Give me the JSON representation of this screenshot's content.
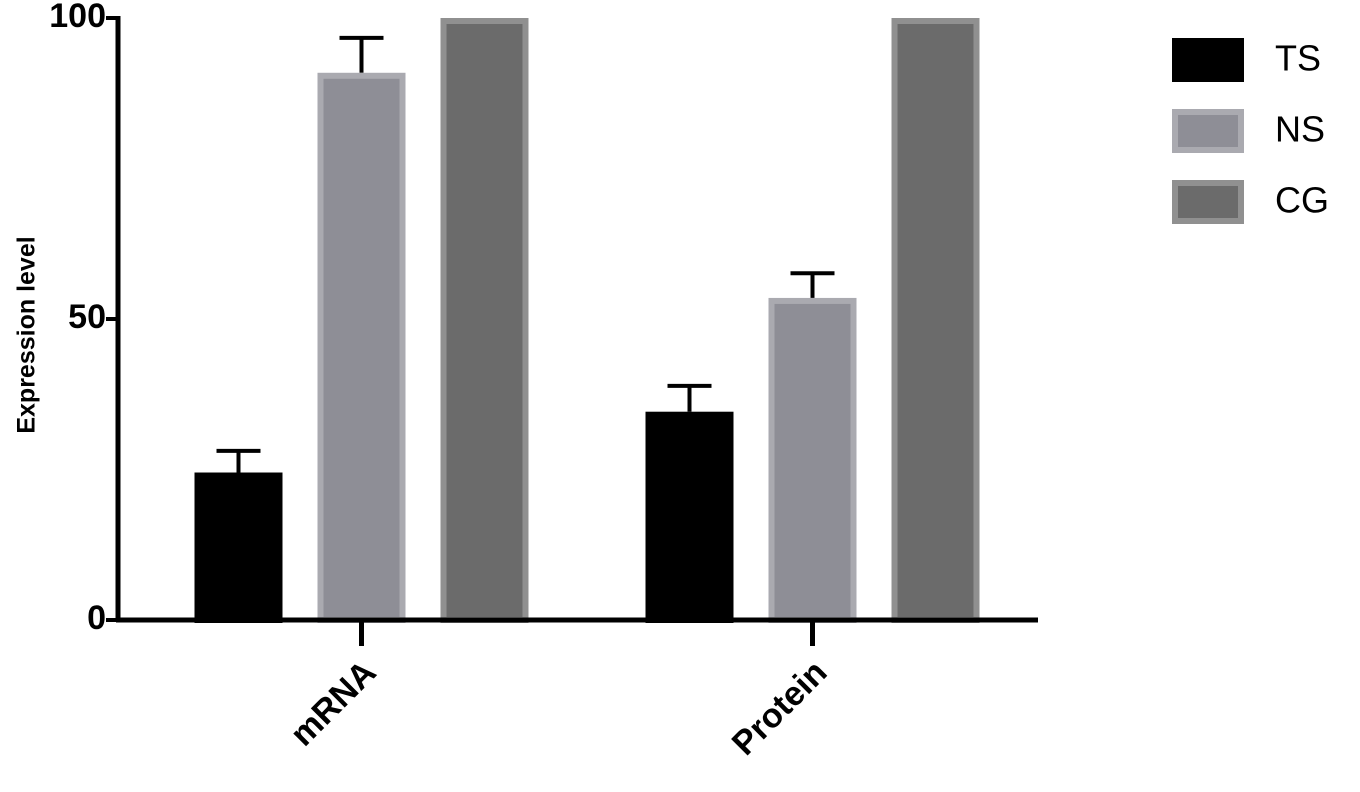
{
  "chart_data": {
    "type": "bar",
    "y_label": "Expression level",
    "categories": [
      "mRNA",
      "Protein"
    ],
    "series": [
      {
        "name": "TS",
        "color": "#000000",
        "values": [
          24.5,
          34.6
        ],
        "errors": [
          3.6,
          4.3
        ]
      },
      {
        "name": "NS",
        "color": "#8e8e96",
        "values": [
          90.9,
          53.5
        ],
        "errors": [
          5.8,
          4.1
        ]
      },
      {
        "name": "CG",
        "color": "#6b6b6b",
        "values": [
          100,
          100
        ]
      }
    ],
    "ylim": [
      0,
      100
    ],
    "yticks": [
      0,
      50,
      100
    ],
    "grid": false,
    "legend": "right"
  }
}
